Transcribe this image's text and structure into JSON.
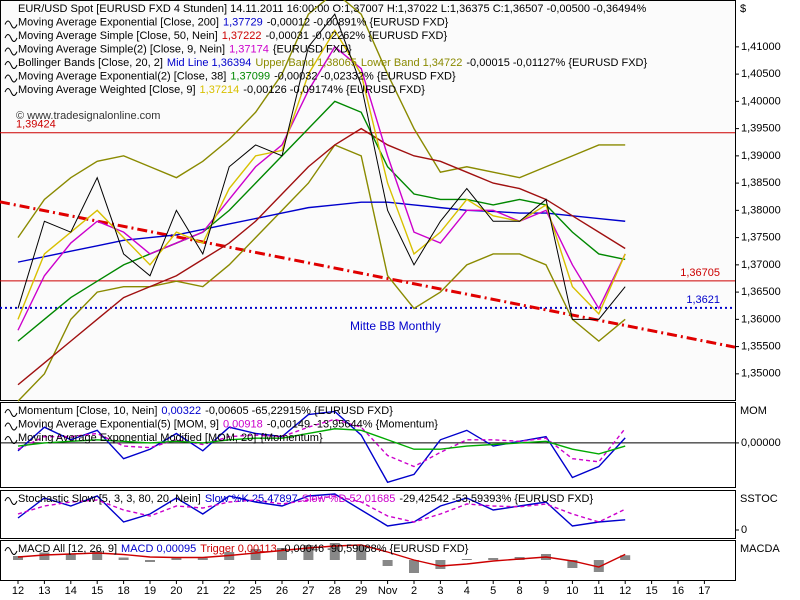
{
  "chart_data": [
    {
      "type": "line",
      "axis_label": "$",
      "title": "EUR/USD Spot [EURUSD FXD  4 Stunden] 14.11.2011 16:00:00 O:1,37007 H:1,37022 L:1,36375 C:1,36507 -0,00500 -0,36494%",
      "copyright": "© www.tradesignalonline.com",
      "annotation": "Mitte BB Monthly",
      "categories": [
        "12",
        "13",
        "14",
        "15",
        "18",
        "19",
        "20",
        "21",
        "22",
        "25",
        "26",
        "27",
        "28",
        "29",
        "Nov",
        "2",
        "3",
        "4",
        "5",
        "8",
        "9",
        "10",
        "11",
        "12",
        "15",
        "16",
        "17"
      ],
      "ylim": [
        1.3452,
        1.4186
      ],
      "yticks": [
        {
          "value": 1.35,
          "label": "1,35000"
        },
        {
          "value": 1.355,
          "label": "1,35500"
        },
        {
          "value": 1.36,
          "label": "1,36000"
        },
        {
          "value": 1.365,
          "label": "1,36500"
        },
        {
          "value": 1.37,
          "label": "1,37000"
        },
        {
          "value": 1.375,
          "label": "1,37500"
        },
        {
          "value": 1.38,
          "label": "1,38000"
        },
        {
          "value": 1.385,
          "label": "1,38500"
        },
        {
          "value": 1.39,
          "label": "1,39000"
        },
        {
          "value": 1.395,
          "label": "1,39500"
        },
        {
          "value": 1.4,
          "label": "1,40000"
        },
        {
          "value": 1.405,
          "label": "1,40500"
        },
        {
          "value": 1.41,
          "label": "1,41000"
        }
      ],
      "legend": [
        [
          {
            "text": "Moving Average Exponential [Close, 200]",
            "color": "#000000"
          },
          {
            "text": "1,37729",
            "color": "#0000cc"
          },
          {
            "text": "-0,00012 -0,00891% {EURUSD FXD}",
            "color": "#000000"
          }
        ],
        [
          {
            "text": "Moving Average Simple [Close, 50, Nein]",
            "color": "#000000"
          },
          {
            "text": "1,37222",
            "color": "#cc0000"
          },
          {
            "text": "-0,00031 -0,02262% {EURUSD FXD}",
            "color": "#000000"
          }
        ],
        [
          {
            "text": "Moving Average Simple(2) [Close, 9, Nein]",
            "color": "#000000"
          },
          {
            "text": "1,37174",
            "color": "#cc00cc"
          },
          {
            "text": "{EURUSD FXD}",
            "color": "#000000"
          }
        ],
        [
          {
            "text": "Bollinger Bands [Close, 20, 2]",
            "color": "#000000"
          },
          {
            "text": "Mid Line 1,36394",
            "color": "#0000cc"
          },
          {
            "text": "Upper Band 1,38065",
            "color": "#8a8a00"
          },
          {
            "text": "Lower Band 1,34722",
            "color": "#8a8a00"
          },
          {
            "text": "-0,00015 -0,01127% {EURUSD FXD}",
            "color": "#000000"
          }
        ],
        [
          {
            "text": "Moving Average Exponential(2) [Close, 38]",
            "color": "#000000"
          },
          {
            "text": "1,37099",
            "color": "#008800"
          },
          {
            "text": "-0,00032 -0,02332% {EURUSD FXD}",
            "color": "#000000"
          }
        ],
        [
          {
            "text": "Moving Average Weighted [Close, 9]",
            "color": "#000000"
          },
          {
            "text": "1,37214",
            "color": "#d8c000"
          },
          {
            "text": "-0,00126 -0,09174% {EURUSD FXD}",
            "color": "#000000"
          }
        ]
      ],
      "hlines": [
        {
          "value": 1.39424,
          "label": "1,39424",
          "color": "#cc0000",
          "side": "left",
          "style": "solid"
        },
        {
          "value": 1.36705,
          "label": "1,36705",
          "color": "#cc0000",
          "side": "right",
          "style": "solid"
        },
        {
          "value": 1.3621,
          "label": "1,3621",
          "color": "#0000cc",
          "side": "right",
          "style": "dotted"
        }
      ],
      "trendline": {
        "from": 1.3809,
        "to": 1.356,
        "color": "#e00000"
      },
      "series": [
        {
          "color": "#8a8a00",
          "style": "line",
          "values": [
            1.375,
            1.382,
            1.386,
            1.389,
            1.39,
            1.388,
            1.386,
            1.389,
            1.393,
            1.398,
            1.405,
            1.416,
            1.42,
            1.416,
            1.405,
            1.395,
            1.387,
            1.388,
            1.387,
            1.386,
            1.388,
            1.39,
            1.392,
            1.392,
            null,
            null,
            null
          ]
        },
        {
          "color": "#8a8a00",
          "style": "line",
          "values": [
            1.345,
            1.35,
            1.36,
            1.365,
            1.366,
            1.366,
            1.367,
            1.366,
            1.37,
            1.375,
            1.38,
            1.385,
            1.392,
            1.39,
            1.368,
            1.362,
            1.365,
            1.37,
            1.372,
            1.372,
            1.37,
            1.36,
            1.356,
            1.36,
            null,
            null,
            null
          ]
        },
        {
          "color": "#0000cc",
          "style": "line",
          "values": [
            1.3705,
            1.3715,
            1.3725,
            1.3735,
            1.3745,
            1.375,
            1.3755,
            1.3765,
            1.3775,
            1.3785,
            1.3795,
            1.3805,
            1.381,
            1.3815,
            1.3815,
            1.381,
            1.3805,
            1.38,
            1.3798,
            1.3795,
            1.3795,
            1.379,
            1.3785,
            1.378,
            null,
            null,
            null
          ]
        },
        {
          "color": "#a01010",
          "style": "line",
          "values": [
            1.348,
            1.352,
            1.356,
            1.36,
            1.364,
            1.366,
            1.368,
            1.371,
            1.374,
            1.378,
            1.383,
            1.388,
            1.392,
            1.395,
            1.392,
            1.39,
            1.389,
            1.387,
            1.385,
            1.384,
            1.382,
            1.379,
            1.376,
            1.373,
            null,
            null,
            null
          ]
        },
        {
          "color": "#008800",
          "style": "line",
          "values": [
            1.356,
            1.36,
            1.364,
            1.367,
            1.37,
            1.372,
            1.374,
            1.376,
            1.38,
            1.385,
            1.39,
            1.395,
            1.4,
            1.398,
            1.388,
            1.383,
            1.382,
            1.382,
            1.381,
            1.382,
            1.381,
            1.376,
            1.372,
            1.371,
            null,
            null,
            null
          ]
        },
        {
          "color": "#cc00cc",
          "style": "line",
          "values": [
            1.358,
            1.368,
            1.374,
            1.378,
            1.376,
            1.372,
            1.374,
            1.376,
            1.382,
            1.388,
            1.392,
            1.402,
            1.41,
            1.406,
            1.39,
            1.376,
            1.374,
            1.38,
            1.38,
            1.378,
            1.38,
            1.37,
            1.362,
            1.372,
            null,
            null,
            null
          ]
        },
        {
          "color": "#d8c000",
          "style": "line",
          "values": [
            1.36,
            1.372,
            1.376,
            1.38,
            1.375,
            1.37,
            1.376,
            1.374,
            1.384,
            1.39,
            1.391,
            1.405,
            1.413,
            1.405,
            1.385,
            1.372,
            1.376,
            1.382,
            1.379,
            1.378,
            1.381,
            1.366,
            1.361,
            1.372,
            null,
            null,
            null
          ]
        },
        {
          "color": "#000000",
          "style": "line",
          "values": [
            1.362,
            1.378,
            1.376,
            1.386,
            1.372,
            1.368,
            1.38,
            1.372,
            1.388,
            1.392,
            1.39,
            1.41,
            1.416,
            1.403,
            1.38,
            1.37,
            1.378,
            1.384,
            1.378,
            1.378,
            1.382,
            1.36,
            1.36,
            1.366,
            null,
            null,
            null
          ]
        }
      ]
    },
    {
      "type": "line",
      "axis_label": "MOM",
      "ylim": [
        -0.028,
        0.026
      ],
      "yticks": [
        {
          "value": 0,
          "label": "0,00000"
        }
      ],
      "legend": [
        [
          {
            "text": "Momentum [Close, 10, Nein]",
            "color": "#000000"
          },
          {
            "text": "0,00322",
            "color": "#0000cc"
          },
          {
            "text": "-0,00605 -65,22915% {EURUSD FXD}",
            "color": "#000000"
          }
        ],
        [
          {
            "text": "Moving Average Exponential(5) [MOM, 9]",
            "color": "#000000"
          },
          {
            "text": "0,00918",
            "color": "#cc00cc"
          },
          {
            "text": "-0,00149 -13,95644% {Momentum}",
            "color": "#000000"
          }
        ],
        [
          {
            "text": "Moving Average Exponential Modified [MOM, 20]",
            "color": "#000000"
          },
          {
            "text": "{Momentum}",
            "color": "#000000"
          }
        ]
      ],
      "series": [
        {
          "color": "#0000cc",
          "style": "line",
          "values": [
            -0.005,
            0.01,
            0.002,
            0.008,
            -0.01,
            -0.004,
            0.006,
            -0.005,
            0.01,
            0.006,
            0.004,
            0.018,
            0.02,
            0.005,
            -0.025,
            -0.02,
            0.002,
            0.008,
            -0.002,
            0.001,
            0.004,
            -0.022,
            -0.015,
            0.00322,
            null,
            null,
            null
          ]
        },
        {
          "color": "#cc00cc",
          "style": "dashed",
          "values": [
            -0.004,
            0.004,
            0.004,
            0.006,
            -0.002,
            -0.003,
            0.002,
            -0.001,
            0.004,
            0.005,
            0.004,
            0.01,
            0.015,
            0.01,
            -0.008,
            -0.015,
            -0.006,
            0.002,
            0.002,
            0.001,
            0.003,
            -0.01,
            -0.012,
            0.00918,
            null,
            null,
            null
          ]
        },
        {
          "color": "#00aa00",
          "style": "line",
          "values": [
            -0.002,
            0.0,
            0.001,
            0.002,
            0.001,
            0.0,
            0.001,
            0.0,
            0.002,
            0.003,
            0.003,
            0.006,
            0.009,
            0.008,
            0.002,
            -0.004,
            -0.004,
            -0.002,
            -0.001,
            0.0,
            0.001,
            -0.004,
            -0.007,
            -0.002,
            null,
            null,
            null
          ]
        }
      ]
    },
    {
      "type": "line",
      "axis_label": "SSTOC",
      "ylim": [
        -20,
        100
      ],
      "yticks": [
        0
      ],
      "legend": [
        [
          {
            "text": "Stochastic Slow [5, 3, 3, 80, 20, Nein]",
            "color": "#000000"
          },
          {
            "text": "Slow %K 25,47897",
            "color": "#0000cc"
          },
          {
            "text": "Slow %D 52,01685",
            "color": "#cc00cc"
          },
          {
            "text": "-29,42542 -53,59393% {EURUSD FXD}",
            "color": "#000000"
          }
        ]
      ],
      "series": [
        {
          "color": "#0000cc",
          "style": "line",
          "values": [
            30,
            80,
            60,
            85,
            20,
            40,
            80,
            40,
            85,
            70,
            60,
            85,
            90,
            50,
            10,
            20,
            60,
            80,
            50,
            60,
            70,
            10,
            20,
            25.47897,
            null,
            null,
            null
          ]
        },
        {
          "color": "#cc00cc",
          "style": "dashed",
          "values": [
            40,
            60,
            70,
            75,
            50,
            35,
            60,
            55,
            70,
            75,
            65,
            75,
            85,
            70,
            35,
            20,
            40,
            65,
            60,
            58,
            65,
            40,
            20,
            52.01685,
            null,
            null,
            null
          ]
        }
      ]
    },
    {
      "type": "bar",
      "axis_label": "MACDA",
      "ylim": [
        -0.004,
        0.004
      ],
      "legend": [
        [
          {
            "text": "MACD All [12, 26, 9]",
            "color": "#000000"
          },
          {
            "text": "MACD 0,00095",
            "color": "#0000cc"
          },
          {
            "text": "Trigger 0,00113",
            "color": "#cc0000"
          },
          {
            "text": "-0,00046 -90,59088% {EURUSD FXD}",
            "color": "#000000"
          }
        ]
      ],
      "series": [
        {
          "color": "#888888",
          "style": "bars",
          "values": [
            0.0008,
            0.0015,
            0.0012,
            0.0018,
            0.0005,
            -0.0004,
            0.0006,
            0.0004,
            0.0016,
            0.0022,
            0.0024,
            0.003,
            0.0034,
            0.0028,
            -0.0012,
            -0.0026,
            -0.0018,
            0.0002,
            0.0004,
            0.0006,
            0.0012,
            -0.0016,
            -0.0024,
            0.00095,
            null,
            null,
            null
          ]
        },
        {
          "color": "#cc0000",
          "style": "line",
          "values": [
            0.0006,
            0.001,
            0.0012,
            0.0014,
            0.0011,
            0.0006,
            0.0005,
            0.0005,
            0.0009,
            0.0014,
            0.0019,
            0.0024,
            0.0028,
            0.003,
            0.0016,
            0.0,
            -0.0012,
            -0.0008,
            -0.0002,
            0.0002,
            0.0006,
            -0.0002,
            -0.0014,
            0.00113,
            null,
            null,
            null
          ]
        }
      ]
    }
  ]
}
